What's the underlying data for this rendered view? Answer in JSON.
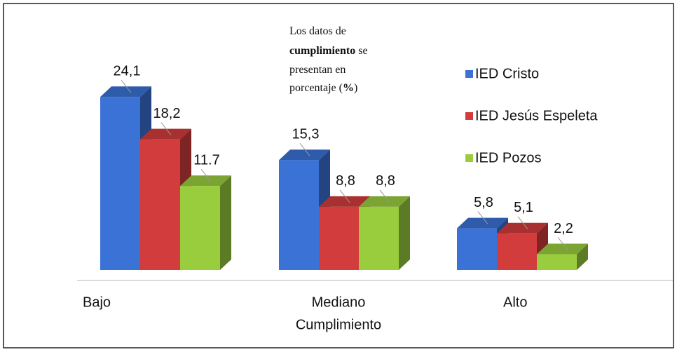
{
  "chart_data": {
    "type": "bar3d",
    "annotation": [
      [
        {
          "text": "Los datos de",
          "bold": false
        }
      ],
      [
        {
          "text": "cumplimiento",
          "bold": true
        },
        {
          "text": " se",
          "bold": false
        }
      ],
      [
        {
          "text": "presentan en",
          "bold": false
        }
      ],
      [
        {
          "text": "porcentaje (",
          "bold": false
        },
        {
          "text": "%",
          "bold": true
        },
        {
          "text": ")",
          "bold": false
        }
      ]
    ],
    "categories": [
      "Bajo",
      [
        "Mediano",
        "Cumplimiento"
      ],
      "Alto"
    ],
    "series": [
      {
        "name": "IED Cristo",
        "color": "#3b72d6",
        "values": [
          24.1,
          15.3,
          5.8
        ],
        "value_labels": [
          "24,1",
          "15,3",
          "5,8"
        ]
      },
      {
        "name": "IED Jesús Espeleta",
        "color": "#d23c3c",
        "values": [
          18.2,
          8.8,
          5.1
        ],
        "value_labels": [
          "18,2",
          "8,8",
          "5,1"
        ]
      },
      {
        "name": "IED Pozos",
        "color": "#9acd3e",
        "values": [
          11.7,
          8.8,
          2.2
        ],
        "value_labels": [
          "11.7",
          "8,8",
          "2,2"
        ]
      }
    ],
    "ylim": [
      0,
      25
    ],
    "legend": "right"
  }
}
